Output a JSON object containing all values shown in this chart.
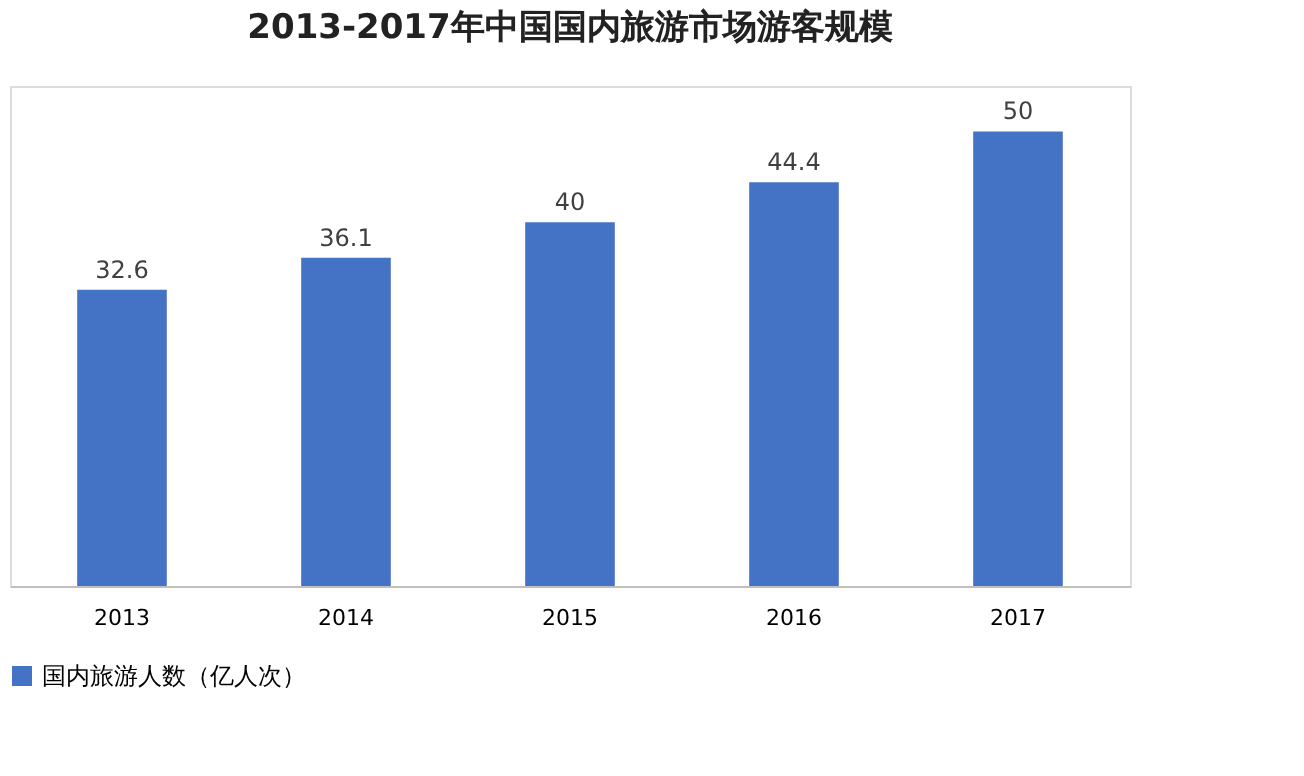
{
  "chart_data": {
    "type": "bar",
    "title": "2013-2017年中国国内旅游市场游客规模",
    "categories": [
      "2013",
      "2014",
      "2015",
      "2016",
      "2017"
    ],
    "series": [
      {
        "name": "国内旅游人数（亿人次）",
        "color": "#4472c4",
        "values": [
          32.6,
          36.1,
          40,
          44.4,
          50
        ]
      }
    ],
    "data_labels": true,
    "legend": "bottom",
    "grid": false
  }
}
